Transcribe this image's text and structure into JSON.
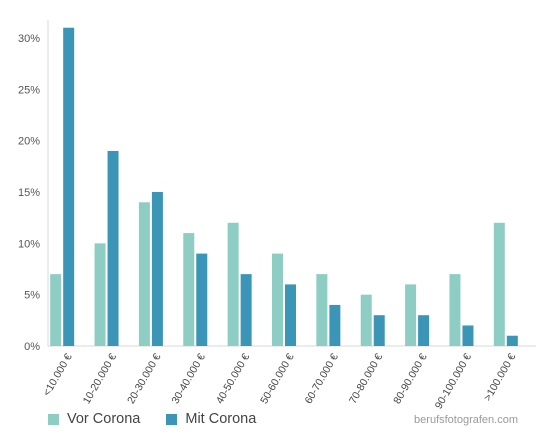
{
  "chart_data": {
    "type": "bar",
    "categories": [
      "<10.000 €",
      "10-20.000 €",
      "20-30.000 €",
      "30-40.000 €",
      "40-50.000 €",
      "50-60.000 €",
      "60-70.000 €",
      "70-80.000 €",
      "80-90.000 €",
      "90-100.000 €",
      ">100.000 €"
    ],
    "series": [
      {
        "name": "Vor Corona",
        "color": "#8ecdc4",
        "values": [
          7,
          10,
          14,
          11,
          12,
          9,
          7,
          5,
          6,
          7,
          12
        ]
      },
      {
        "name": "Mit Corona",
        "color": "#3a95b6",
        "values": [
          31,
          19,
          15,
          9,
          7,
          6,
          4,
          3,
          3,
          2,
          1
        ]
      }
    ],
    "yticks": [
      "0%",
      "5%",
      "10%",
      "15%",
      "20%",
      "25%",
      "30%"
    ],
    "ylim": [
      0,
      30
    ],
    "legend_position": "bottom-left",
    "grid": false
  },
  "legend": {
    "vor_label": "Vor Corona",
    "vor_color": "#8ecdc4",
    "mit_label": "Mit Corona",
    "mit_color": "#3a95b6"
  },
  "watermark": "berufsfotografen.com"
}
